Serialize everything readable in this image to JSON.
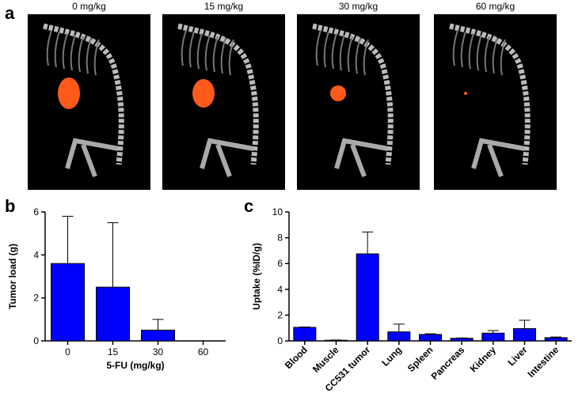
{
  "panel_a": {
    "label": "a",
    "images": [
      {
        "title": "0 mg/kg"
      },
      {
        "title": "15 mg/kg"
      },
      {
        "title": "30 mg/kg"
      },
      {
        "title": "60 mg/kg"
      }
    ]
  },
  "chart_data": [
    {
      "type": "bar",
      "panel_label": "b",
      "ylabel": "Tumor load (g)",
      "xlabel": "5-FU (mg/kg)",
      "categories": [
        "0",
        "15",
        "30",
        "60"
      ],
      "values": [
        3.6,
        2.5,
        0.5,
        0
      ],
      "errors": [
        2.2,
        3.0,
        0.5,
        0
      ],
      "color": "#0000ff",
      "ylim": [
        0,
        6
      ],
      "yticks": [
        0,
        2,
        4,
        6
      ]
    },
    {
      "type": "bar",
      "panel_label": "c",
      "ylabel": "Uptake (%ID/g)",
      "categories": [
        "Blood",
        "Muscle",
        "CC531 tumor",
        "Lung",
        "Spleen",
        "Pancreas",
        "Kidney",
        "Liver",
        "Intestine"
      ],
      "values": [
        1.05,
        0.05,
        6.75,
        0.7,
        0.5,
        0.2,
        0.6,
        0.95,
        0.25
      ],
      "errors": [
        0.03,
        0.02,
        1.7,
        0.6,
        0.05,
        0.03,
        0.2,
        0.65,
        0.05
      ],
      "color": "#0000ff",
      "ylim": [
        0,
        10
      ],
      "yticks": [
        0,
        2,
        4,
        6,
        8,
        10
      ]
    }
  ]
}
